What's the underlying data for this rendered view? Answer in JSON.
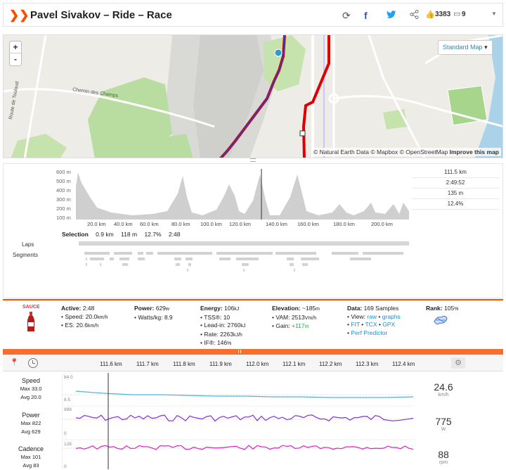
{
  "header": {
    "title": "Pavel Sivakov – Ride – Race",
    "kudos_count": "3383",
    "comment_count": "9"
  },
  "map": {
    "style_label": "Standard Map",
    "zoom_in": "+",
    "zoom_out": "-",
    "attribution": "© Natural Earth Data © Mapbox © OpenStreetMap",
    "improve": "Improve this map",
    "place_labels": [
      "Route de Toulaud",
      "Chemin des Champs"
    ]
  },
  "elevation": {
    "y_ticks": [
      "600 m",
      "500 m",
      "400 m",
      "300 m",
      "200 m",
      "100 m"
    ],
    "x_ticks": [
      "20.0 km",
      "40.0 km",
      "60.0 km",
      "80.0 km",
      "100.0 km",
      "120.0 km",
      "140.0 km",
      "160.0 km",
      "180.0 km",
      "200.0 km"
    ],
    "stats": [
      "111.5 km",
      "2:49:52",
      "135 m",
      "12.4%"
    ],
    "selection": {
      "label": "Selection",
      "distance": "0.9 km",
      "elevation": "118 m",
      "grade": "12.7%",
      "time": "2:48"
    },
    "laps_label": "Laps",
    "segments_label": "Segments"
  },
  "panel": {
    "sauce_label": "SAUCE",
    "active": {
      "label": "Active:",
      "value": "2:48",
      "speed": "Speed: 20.0",
      "speed_unit": "km/h",
      "es": "ES: 20.6",
      "es_unit": "km/h"
    },
    "power": {
      "label": "Power:",
      "value": "629",
      "unit": "w",
      "wkg": "Watts/kg: 8.9"
    },
    "energy": {
      "label": "Energy:",
      "value": "106",
      "unit": "kJ",
      "tss": "TSS®: 10",
      "leadin": "Lead-in: 2760",
      "leadin_unit": "kJ",
      "rate": "Rate: 2263",
      "rate_unit": "kJ/h",
      "if": "IF®: 146",
      "if_unit": "%"
    },
    "elevation": {
      "label": "Elevation:",
      "value": "~185",
      "unit": "m",
      "vam": "VAM: 2513",
      "vam_unit": "Vm/h",
      "gain_label": "Gain:",
      "gain": "+117",
      "gain_unit": "m"
    },
    "data": {
      "label": "Data:",
      "value": "169 Samples",
      "view_label": "View:",
      "view_raw": "raw",
      "view_graphs": "graphs",
      "fit": "FIT",
      "tcx": "TCX",
      "gpx": "GPX",
      "perf": "Perf Predictor"
    },
    "rank": {
      "label": "Rank:",
      "value": "105",
      "unit": "%"
    }
  },
  "timeline": {
    "x_ticks": [
      "111.6 km",
      "111.7 km",
      "111.8 km",
      "111.9 km",
      "112.0 km",
      "112.1 km",
      "112.2 km",
      "112.3 km",
      "112.4 km"
    ],
    "rows": [
      {
        "name": "Speed",
        "max": "Max 33.0",
        "avg": "Avg 20.0",
        "ymax": "84.0",
        "ymin": "8.5",
        "value": "24.6",
        "unit": "km/h",
        "color": "#4fb3d9"
      },
      {
        "name": "Power",
        "max": "Max 822",
        "avg": "Avg 629",
        "ymax": "998",
        "ymin": "0",
        "value": "775",
        "unit": "W",
        "color": "#8a2be2"
      },
      {
        "name": "Cadence",
        "max": "Max 101",
        "avg": "Avg 83",
        "ymax": "128",
        "ymin": "0",
        "value": "88",
        "unit": "rpm",
        "color": "#e020c0"
      }
    ]
  }
}
